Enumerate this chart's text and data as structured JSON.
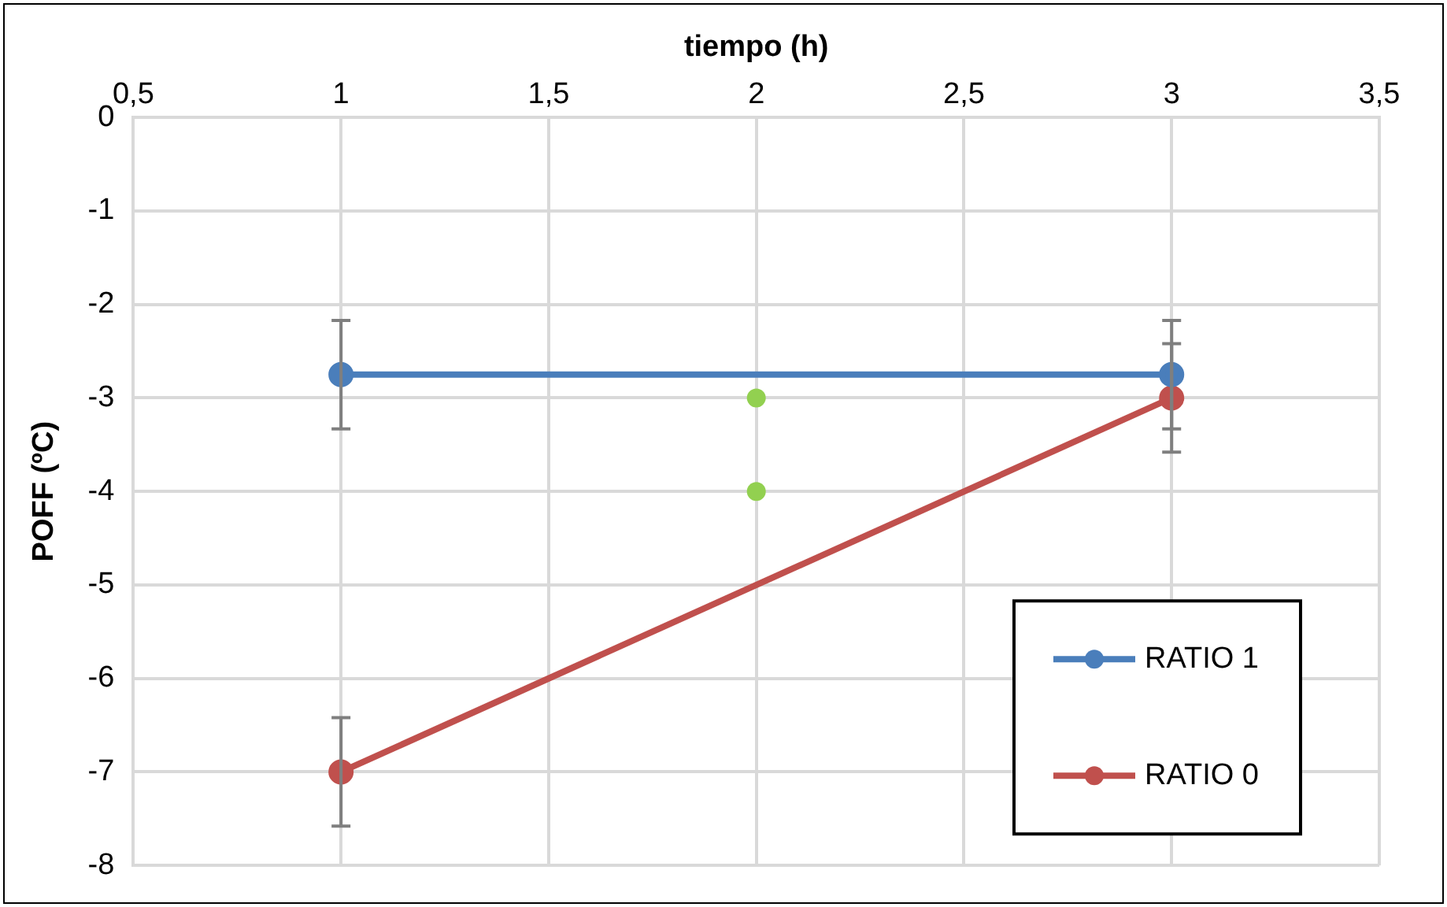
{
  "chart_data": {
    "type": "line",
    "xlabel": "tiempo (h)",
    "ylabel": "POFF (ºC)",
    "xlim": [
      0.5,
      3.5
    ],
    "xticks": [
      {
        "value": 0.5,
        "label": "0,5"
      },
      1,
      {
        "value": 1.5,
        "label": "1,5"
      },
      2,
      {
        "value": 2.5,
        "label": "2,5"
      },
      3,
      {
        "value": 3.5,
        "label": "3,5"
      }
    ],
    "ylim": [
      -8,
      0
    ],
    "yticks": [
      -8,
      -7,
      -6,
      -5,
      -4,
      -3,
      -2,
      -1,
      0
    ],
    "grid": true,
    "legend": "bottom right",
    "marker": "circle",
    "line_style": "solid",
    "series": [
      {
        "name": "RATIO 1",
        "color": "#4a7ebb",
        "x": [
          1,
          3
        ],
        "values": [
          -2.75,
          -2.75
        ],
        "errors": [
          0.58,
          0.58
        ]
      },
      {
        "name": "RATIO 0",
        "color": "#c0504d",
        "x": [
          1,
          3
        ],
        "values": [
          -7,
          -3
        ],
        "errors": [
          0.58,
          0.58
        ]
      },
      {
        "type": "scatter",
        "color": "#92d050",
        "x": [
          2,
          2
        ],
        "values": [
          -3,
          -4
        ]
      }
    ]
  }
}
